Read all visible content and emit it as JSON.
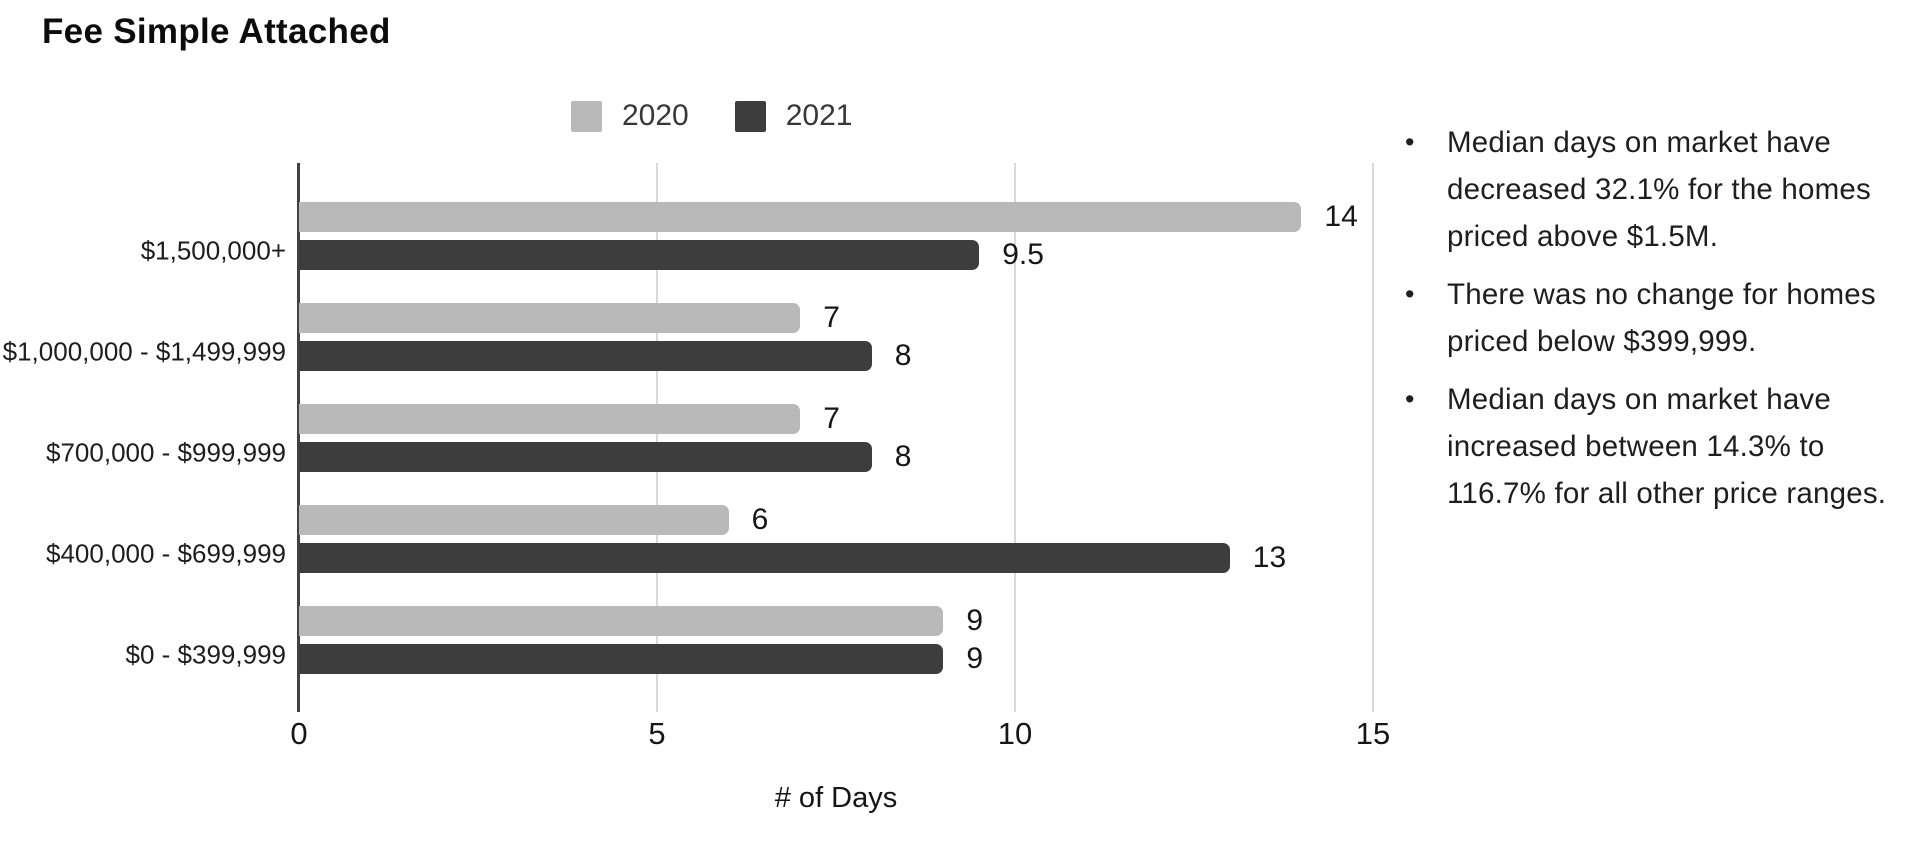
{
  "chart_data": {
    "type": "bar",
    "orientation": "horizontal",
    "title": "Fee Simple Attached",
    "categories": [
      "$1,500,000+",
      "$1,000,000 - $1,499,999",
      "$700,000 - $999,999",
      "$400,000 - $699,999",
      "$0 - $399,999"
    ],
    "series": [
      {
        "name": "2020",
        "color": "#b9b9b9",
        "values": [
          14,
          7,
          7,
          6,
          9
        ]
      },
      {
        "name": "2021",
        "color": "#3d3d3d",
        "values": [
          9.5,
          8,
          8,
          13,
          9
        ]
      }
    ],
    "xlabel": "# of Days",
    "ylabel": "",
    "xlim": [
      0,
      15
    ],
    "xticks": [
      0,
      5,
      10,
      15
    ],
    "legend_position": "top",
    "grid": "vertical",
    "value_labels": true
  },
  "notes": {
    "bullet_char": "•",
    "bullets": [
      "Median days on market have decreased 32.1% for the homes priced above $1.5M.",
      "There was no change for homes priced below $399,999.",
      "Median days on market have increased between 14.3% to 116.7% for all other price ranges."
    ]
  },
  "colors": {
    "background": "#ffffff",
    "axis_line": "#424242",
    "gridline": "#d9d9d9",
    "text": "#1d1d1d"
  }
}
